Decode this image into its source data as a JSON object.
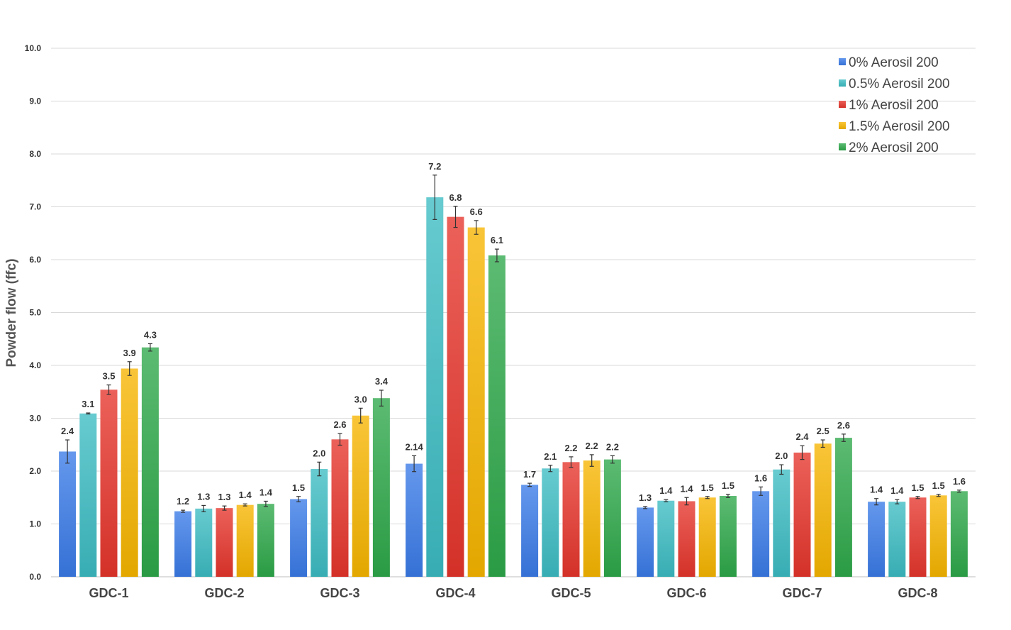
{
  "chart_data": {
    "type": "bar",
    "title": "",
    "xlabel": "",
    "ylabel": "Powder flow (ffc)",
    "ylim": [
      0,
      10
    ],
    "yticks": [
      "0.0",
      "1.0",
      "2.0",
      "3.0",
      "4.0",
      "5.0",
      "6.0",
      "7.0",
      "8.0",
      "9.0",
      "10.0"
    ],
    "grid": true,
    "legend_position": "top-right",
    "categories": [
      "GDC-1",
      "GDC-2",
      "GDC-3",
      "GDC-4",
      "GDC-5",
      "GDC-6",
      "GDC-7",
      "GDC-8"
    ],
    "series": [
      {
        "name": "0% Aerosil 200",
        "color": "#3a7be8",
        "values": [
          2.37,
          1.24,
          1.47,
          2.14,
          1.74,
          1.31,
          1.62,
          1.42
        ],
        "errors": [
          0.22,
          0.02,
          0.05,
          0.15,
          0.03,
          0.02,
          0.08,
          0.06
        ],
        "labels": [
          "2.4",
          "1.2",
          "1.5",
          "2.14",
          "1.7",
          "1.3",
          "1.6",
          "1.4"
        ]
      },
      {
        "name": "0.5% Aerosil 200",
        "color": "#3cbcc3",
        "values": [
          3.09,
          1.29,
          2.04,
          7.18,
          2.05,
          1.44,
          2.03,
          1.42
        ],
        "errors": [
          0.01,
          0.06,
          0.13,
          0.42,
          0.06,
          0.02,
          0.09,
          0.04
        ],
        "labels": [
          "3.1",
          "1.3",
          "2.0",
          "7.2",
          "2.1",
          "1.4",
          "2.0",
          "1.4"
        ]
      },
      {
        "name": "1% Aerosil 200",
        "color": "#e5352b",
        "values": [
          3.54,
          1.3,
          2.6,
          6.81,
          2.17,
          1.43,
          2.35,
          1.5
        ],
        "errors": [
          0.09,
          0.04,
          0.11,
          0.2,
          0.1,
          0.07,
          0.13,
          0.02
        ],
        "labels": [
          "3.5",
          "1.3",
          "2.6",
          "6.8",
          "2.2",
          "1.4",
          "2.4",
          "1.5"
        ]
      },
      {
        "name": "1.5% Aerosil 200",
        "color": "#f7b500",
        "values": [
          3.94,
          1.36,
          3.05,
          6.61,
          2.2,
          1.5,
          2.52,
          1.54
        ],
        "errors": [
          0.13,
          0.02,
          0.14,
          0.13,
          0.11,
          0.02,
          0.07,
          0.02
        ],
        "labels": [
          "3.9",
          "1.4",
          "3.0",
          "6.6",
          "2.2",
          "1.5",
          "2.5",
          "1.5"
        ]
      },
      {
        "name": "2% Aerosil 200",
        "color": "#2ea84a",
        "values": [
          4.34,
          1.38,
          3.38,
          6.08,
          2.22,
          1.53,
          2.63,
          1.62
        ],
        "errors": [
          0.07,
          0.05,
          0.15,
          0.12,
          0.07,
          0.03,
          0.07,
          0.02
        ],
        "labels": [
          "4.3",
          "1.4",
          "3.4",
          "6.1",
          "2.2",
          "1.5",
          "2.6",
          "1.6"
        ]
      }
    ]
  }
}
